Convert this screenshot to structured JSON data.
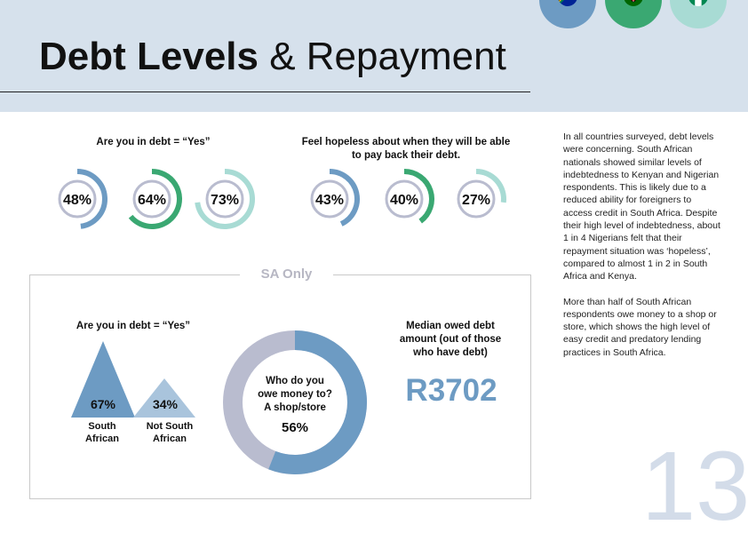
{
  "title": {
    "bold": "Debt Levels",
    "rest": " & Repayment"
  },
  "colors": {
    "south_africa": "#6d9bc3",
    "kenya": "#3aa872",
    "nigeria": "#a8dbd4",
    "track": "#b9bccf"
  },
  "flags": [
    {
      "country": "South Africa",
      "icon": "south-africa-flag-icon"
    },
    {
      "country": "Kenya",
      "icon": "kenya-flag-icon"
    },
    {
      "country": "Nigeria",
      "icon": "nigeria-flag-icon"
    }
  ],
  "in_debt": {
    "label": "Are you in debt = “Yes”",
    "values": [
      {
        "country": "South Africa",
        "pct": 48,
        "label": "48%"
      },
      {
        "country": "Kenya",
        "pct": 64,
        "label": "64%"
      },
      {
        "country": "Nigeria",
        "pct": 73,
        "label": "73%"
      }
    ]
  },
  "hopeless": {
    "label_line1": "Feel hopeless about when they will be able",
    "label_line2": "to pay back their debt.",
    "values": [
      {
        "country": "South Africa",
        "pct": 43,
        "label": "43%"
      },
      {
        "country": "Kenya",
        "pct": 40,
        "label": "40%"
      },
      {
        "country": "Nigeria",
        "pct": 27,
        "label": "27%"
      }
    ]
  },
  "sa_only": {
    "title": "SA Only",
    "in_debt_label": "Are you in debt = “Yes”",
    "south_african": {
      "pct": 67,
      "value": "67%",
      "line1": "South",
      "line2": "African"
    },
    "not_south_african": {
      "pct": 34,
      "value": "34%",
      "line1": "Not South",
      "line2": "African"
    },
    "owe": {
      "line1": "Who do you",
      "line2": "owe money to?",
      "line3": "A shop/store",
      "value": "56%",
      "pct": 56
    },
    "median": {
      "line1": "Median owed debt",
      "line2": "amount (out of those",
      "line3": "who have debt)",
      "value": "R3702"
    }
  },
  "sidebar": {
    "p1": "In all countries surveyed, debt levels were concerning. South African nationals showed similar levels of indebtedness to Kenyan and Nigerian respondents. This is likely due to a reduced ability for foreigners to access credit in South Africa. Despite their high level of indebtedness, about 1 in 4 Nigerians felt that their repayment situation was ‘hopeless’, compared to almost 1 in 2 in South Africa and Kenya.",
    "p2": "More than half of South African respondents owe money to a shop or store, which shows the high level of easy credit and predatory lending practices in South Africa."
  },
  "page_number": "13"
}
